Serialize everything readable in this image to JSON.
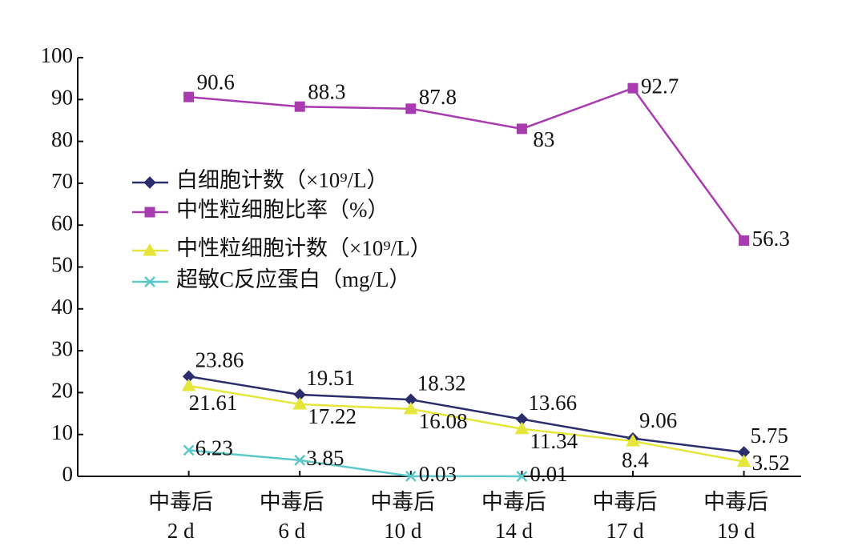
{
  "chart_data": {
    "type": "line",
    "categories": [
      "中毒后\n2 d",
      "中毒后\n6 d",
      "中毒后\n10 d",
      "中毒后\n14 d",
      "中毒后\n17 d",
      "中毒后\n19 d"
    ],
    "series": [
      {
        "name": "白细胞计数（×10⁹/L）",
        "color": "#2b2d6e",
        "marker": "diamond",
        "values": [
          23.86,
          19.51,
          18.32,
          13.66,
          9.06,
          5.75
        ]
      },
      {
        "name": "中性粒细胞比率（%）",
        "color": "#a83bb0",
        "marker": "square",
        "values": [
          90.6,
          88.3,
          87.8,
          83,
          92.7,
          56.3
        ]
      },
      {
        "name": "中性粒细胞计数（×10⁹/L）",
        "color": "#e6e63a",
        "marker": "triangle",
        "values": [
          21.61,
          17.22,
          16.08,
          11.34,
          8.4,
          3.52
        ]
      },
      {
        "name": "超敏C反应蛋白（mg/L）",
        "color": "#5cc8c8",
        "marker": "x",
        "values": [
          6.23,
          3.85,
          0.03,
          0.01,
          null,
          null
        ]
      }
    ],
    "ylim": [
      0,
      100
    ],
    "yticks": [
      0,
      10,
      20,
      30,
      40,
      50,
      60,
      70,
      80,
      90,
      100
    ],
    "legend": "upper left"
  }
}
